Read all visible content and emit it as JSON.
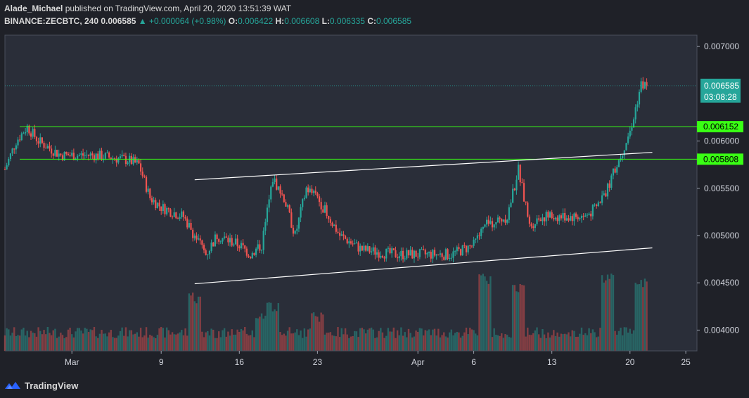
{
  "header": {
    "author": "Alade_Michael",
    "published_text": "published on TradingView.com, April 20, 2020 13:51:39 WAT",
    "symbol": "BINANCE:ZECBTC, 240",
    "last": "0.006585",
    "change": "+0.000064 (+0.98%)",
    "o_label": "O:",
    "o": "0.006422",
    "h_label": "H:",
    "h": "0.006608",
    "l_label": "L:",
    "l": "0.006335",
    "c_label": "C:",
    "c": "0.006585"
  },
  "footer": {
    "brand": "TradingView"
  },
  "colors": {
    "background": "#1f2128",
    "pane": "#2a2e39",
    "up": "#26a69a",
    "down": "#ef5350",
    "level": "#39ff14",
    "channel": "#ffffff"
  },
  "chart_data": {
    "type": "candlestick",
    "y_axis_ticks": [
      "0.007000",
      "0.006000",
      "0.005500",
      "0.005000",
      "0.004500",
      "0.004000"
    ],
    "y_tick_values": [
      0.007,
      0.006,
      0.0055,
      0.005,
      0.0045,
      0.004
    ],
    "ylim": [
      0.00378,
      0.00712
    ],
    "x_axis_labels": [
      "Mar",
      "9",
      "16",
      "23",
      "Apr",
      "6",
      "13",
      "20",
      "25"
    ],
    "x_label_dates": [
      "2020-03-01",
      "2020-03-09",
      "2020-03-16",
      "2020-03-23",
      "2020-04-01",
      "2020-04-06",
      "2020-04-13",
      "2020-04-20",
      "2020-04-25"
    ],
    "x_range": [
      "2020-02-24",
      "2020-04-26"
    ],
    "levels": [
      {
        "value": 0.006152,
        "label": "0.006152"
      },
      {
        "value": 0.005808,
        "label": "0.005808"
      }
    ],
    "current_price": {
      "value": 0.006585,
      "label": "0.006585",
      "countdown": "03:08:28"
    },
    "channel_lines": [
      {
        "start": [
          "2020-03-12",
          0.00559
        ],
        "end": [
          "2020-04-22",
          0.00588
        ]
      },
      {
        "start": [
          "2020-03-12",
          0.00449
        ],
        "end": [
          "2020-04-22",
          0.00487
        ]
      }
    ],
    "price_path": [
      [
        "2020-02-24",
        0.0057
      ],
      [
        "2020-02-25",
        0.006
      ],
      [
        "2020-02-26",
        0.00615
      ],
      [
        "2020-02-27",
        0.006
      ],
      [
        "2020-02-29",
        0.00585
      ],
      [
        "2020-03-03",
        0.00585
      ],
      [
        "2020-03-06",
        0.0058
      ],
      [
        "2020-03-07",
        0.00575
      ],
      [
        "2020-03-08",
        0.0054
      ],
      [
        "2020-03-09",
        0.0053
      ],
      [
        "2020-03-11",
        0.0052
      ],
      [
        "2020-03-12",
        0.005
      ],
      [
        "2020-03-13",
        0.0048
      ],
      [
        "2020-03-14",
        0.005
      ],
      [
        "2020-03-16",
        0.0049
      ],
      [
        "2020-03-17",
        0.0048
      ],
      [
        "2020-03-18",
        0.0049
      ],
      [
        "2020-03-19",
        0.0056
      ],
      [
        "2020-03-20",
        0.0054
      ],
      [
        "2020-03-21",
        0.005
      ],
      [
        "2020-03-22",
        0.0055
      ],
      [
        "2020-03-23",
        0.0054
      ],
      [
        "2020-03-25",
        0.005
      ],
      [
        "2020-03-27",
        0.00485
      ],
      [
        "2020-03-30",
        0.0048
      ],
      [
        "2020-04-02",
        0.0048
      ],
      [
        "2020-04-04",
        0.0048
      ],
      [
        "2020-04-06",
        0.0049
      ],
      [
        "2020-04-07",
        0.0051
      ],
      [
        "2020-04-09",
        0.0052
      ],
      [
        "2020-04-10",
        0.0057
      ],
      [
        "2020-04-11",
        0.0051
      ],
      [
        "2020-04-12",
        0.0052
      ],
      [
        "2020-04-16",
        0.0052
      ],
      [
        "2020-04-17",
        0.0053
      ],
      [
        "2020-04-18",
        0.0055
      ],
      [
        "2020-04-19",
        0.0058
      ],
      [
        "2020-04-20",
        0.0061
      ],
      [
        "2020-04-21",
        0.0066
      ],
      [
        "2020-04-21T12:00",
        0.006585
      ]
    ],
    "volume": {
      "baseline": 0.00378,
      "typical": 0.00395,
      "spikes": [
        [
          "2020-03-12",
          0.0044
        ],
        [
          "2020-03-18",
          0.0042
        ],
        [
          "2020-03-19",
          0.0043
        ],
        [
          "2020-03-23",
          0.0042
        ],
        [
          "2020-04-07",
          0.0046
        ],
        [
          "2020-04-10",
          0.0045
        ],
        [
          "2020-04-18",
          0.0046
        ],
        [
          "2020-04-21",
          0.00455
        ]
      ]
    }
  }
}
